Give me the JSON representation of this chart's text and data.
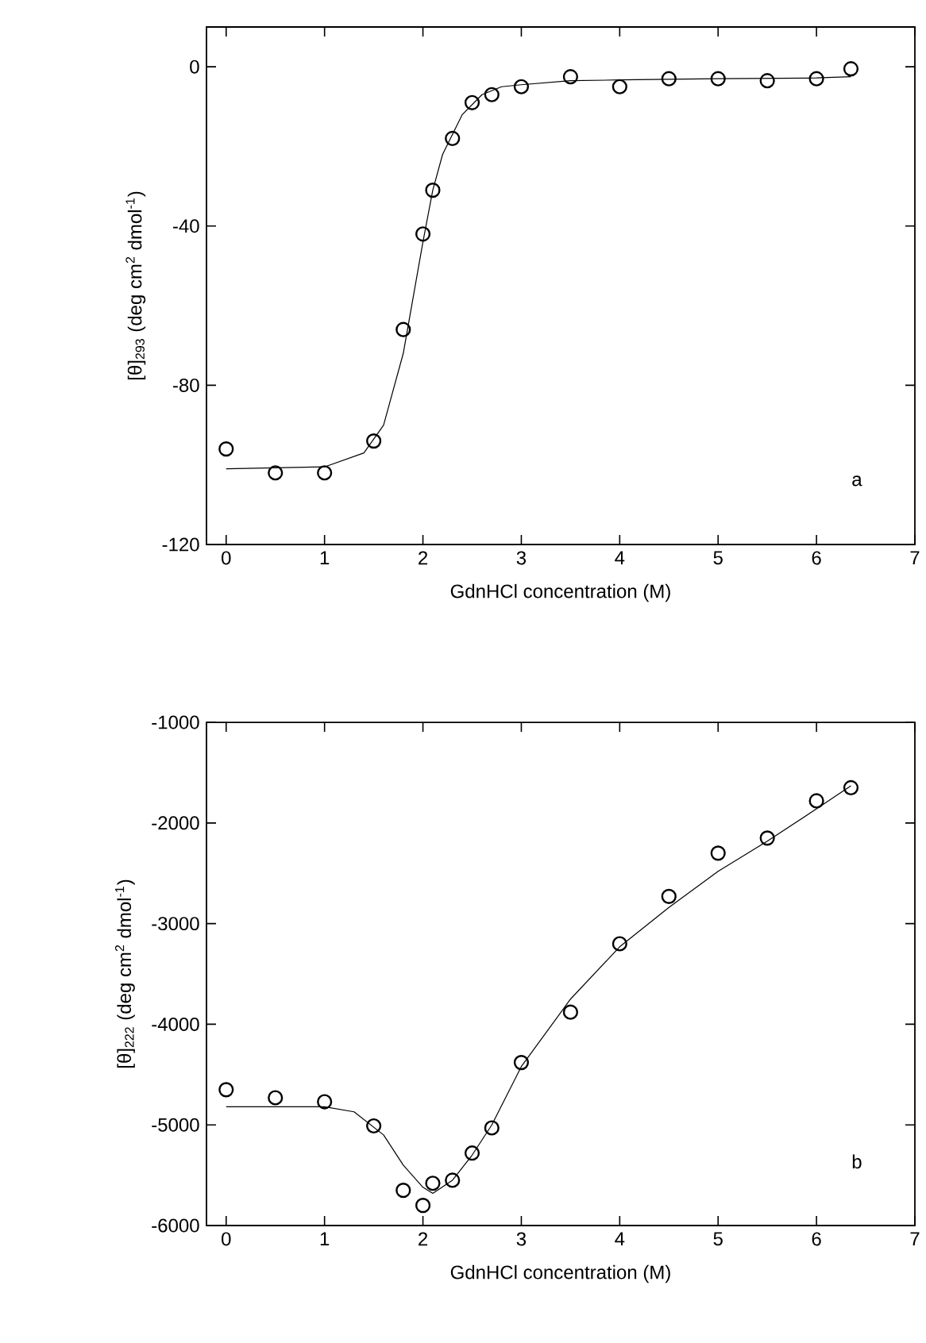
{
  "chart_data": [
    {
      "type": "scatter",
      "xlabel": "GdnHCl concentration (M)",
      "ylabel": "[θ]$_{293}$ (deg cm$^{2}$ dmol$^{-1}$)",
      "annotations": [
        "a"
      ],
      "xlim": [
        -0.2,
        7
      ],
      "ylim": [
        -120,
        10
      ],
      "xticks": [
        0,
        1,
        2,
        3,
        4,
        5,
        6,
        7
      ],
      "yticks": [
        -120,
        -80,
        -40,
        0
      ],
      "series": [
        {
          "marker": "circle",
          "color": "#000000",
          "x": [
            0,
            0.5,
            1.0,
            1.5,
            1.8,
            2.0,
            2.1,
            2.3,
            2.5,
            2.7,
            3.0,
            3.5,
            4.0,
            4.5,
            5.0,
            5.5,
            6.0,
            6.35
          ],
          "values": [
            -96,
            -102,
            -102,
            -94,
            -66,
            -42,
            -31,
            -18,
            -9,
            -7,
            -5,
            -2.5,
            -5,
            -3,
            -3,
            -3.5,
            -3,
            -0.5
          ]
        },
        {
          "type": "line",
          "marker": "none",
          "color": "#000000",
          "x": [
            0,
            1.0,
            1.4,
            1.6,
            1.8,
            1.9,
            2.0,
            2.1,
            2.2,
            2.4,
            2.6,
            2.8,
            3.0,
            3.5,
            4.0,
            5.0,
            6.0,
            6.35
          ],
          "values": [
            -101,
            -100.5,
            -97,
            -90,
            -72,
            -58,
            -44,
            -31,
            -22,
            -12,
            -7,
            -5,
            -4.5,
            -3.5,
            -3.3,
            -3,
            -2.8,
            -2.5
          ]
        }
      ]
    },
    {
      "type": "scatter",
      "xlabel": "GdnHCl concentration (M)",
      "ylabel": "[θ]$_{222}$ (deg cm$^{2}$ dmol$^{-1}$)",
      "annotations": [
        "b"
      ],
      "xlim": [
        -0.2,
        7
      ],
      "ylim": [
        -6000,
        -1000
      ],
      "xticks": [
        0,
        1,
        2,
        3,
        4,
        5,
        6,
        7
      ],
      "yticks": [
        -6000,
        -5000,
        -4000,
        -3000,
        -2000,
        -1000
      ],
      "series": [
        {
          "marker": "circle",
          "color": "#000000",
          "x": [
            0,
            0.5,
            1.0,
            1.5,
            1.8,
            2.0,
            2.1,
            2.3,
            2.5,
            2.7,
            3.0,
            3.5,
            4.0,
            4.5,
            5.0,
            5.5,
            6.0,
            6.35
          ],
          "values": [
            -4650,
            -4730,
            -4770,
            -5010,
            -5650,
            -5800,
            -5580,
            -5550,
            -5280,
            -5030,
            -4380,
            -3880,
            -3200,
            -2730,
            -2300,
            -2150,
            -1780,
            -1650
          ]
        },
        {
          "type": "line",
          "marker": "none",
          "color": "#000000",
          "x": [
            0,
            1.0,
            1.3,
            1.6,
            1.8,
            2.0,
            2.1,
            2.3,
            2.5,
            2.7,
            3.0,
            3.5,
            4.0,
            4.5,
            5.0,
            5.5,
            6.0,
            6.35
          ],
          "values": [
            -4820,
            -4820,
            -4870,
            -5100,
            -5400,
            -5620,
            -5680,
            -5550,
            -5300,
            -5000,
            -4420,
            -3750,
            -3230,
            -2840,
            -2480,
            -2180,
            -1860,
            -1630
          ]
        }
      ]
    }
  ]
}
